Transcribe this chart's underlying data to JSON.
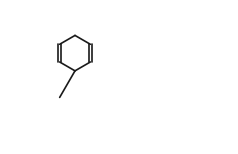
{
  "background": "#ffffff",
  "lw": 1.2,
  "bond_color": "#1a1a1a",
  "text_color": "#1a1a1a",
  "font_size": 7.5
}
